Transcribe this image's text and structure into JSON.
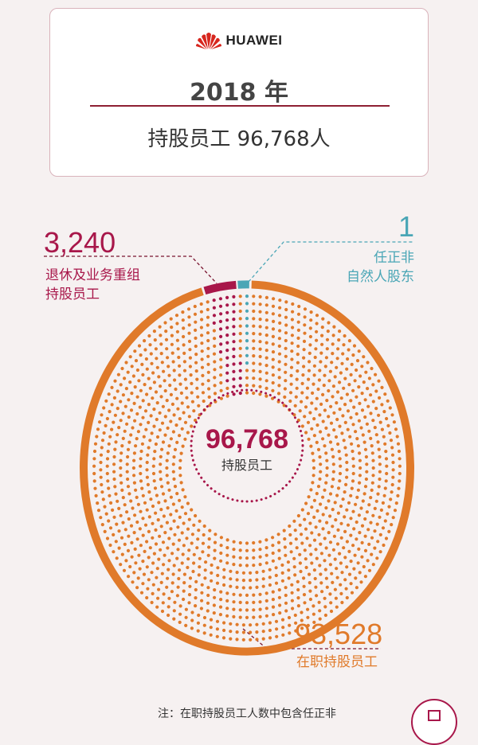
{
  "header": {
    "logo_text": "HUAWEI",
    "year": "2018 年",
    "subtitle": "持股员工 96,768人"
  },
  "chart_data": {
    "type": "pie",
    "style": "donut-dot",
    "total": 96768,
    "total_label": "96,768",
    "center_label": "持股员工",
    "slices": [
      {
        "name": "退休及业务重组持股员工",
        "value": 3240,
        "value_label": "3,240",
        "label_lines": [
          "退休及业务重组",
          "持股员工"
        ],
        "color": "#a8174a"
      },
      {
        "name": "任正非自然人股东",
        "value": 1,
        "value_label": "1",
        "label_lines": [
          "任正非",
          "自然人股东"
        ],
        "color": "#4aa6b6"
      },
      {
        "name": "在职持股员工",
        "value": 93528,
        "value_label": "93,528",
        "label_lines": [
          "在职持股员工"
        ],
        "color": "#e07a2a"
      }
    ]
  },
  "footnote": "注：在职持股员工人数中包含任正非",
  "colors": {
    "background": "#f6f1f1",
    "accent": "#a8174a",
    "rule": "#8e1f33"
  },
  "icons": {
    "fab": "grid-icon",
    "logo": "huawei-petal-logo"
  }
}
